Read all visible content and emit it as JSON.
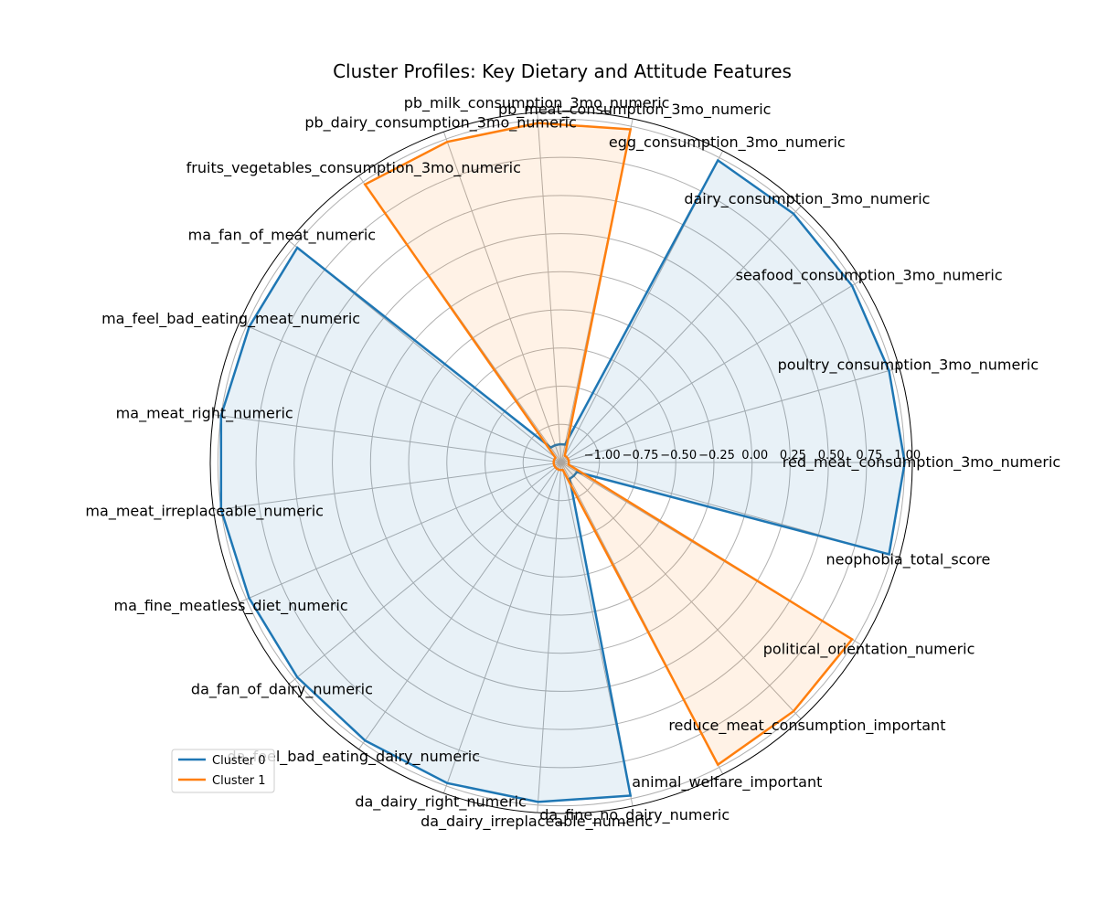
{
  "chart_data": {
    "type": "radar",
    "title": "Cluster Profiles: Key Dietary and Attitude Features",
    "categories": [
      "red_meat_consumption_3mo_numeric",
      "poultry_consumption_3mo_numeric",
      "seafood_consumption_3mo_numeric",
      "dairy_consumption_3mo_numeric",
      "egg_consumption_3mo_numeric",
      "pb_meat_consumption_3mo_numeric",
      "pb_milk_consumption_3mo_numeric",
      "pb_dairy_consumption_3mo_numeric",
      "fruits_vegetables_consumption_3mo_numeric",
      "ma_fan_of_meat_numeric",
      "ma_feel_bad_eating_meat_numeric",
      "ma_meat_right_numeric",
      "ma_meat_irreplaceable_numeric",
      "ma_fine_meatless_diet_numeric",
      "da_fan_of_dairy_numeric",
      "da_feel_bad_eating_dairy_numeric",
      "da_dairy_right_numeric",
      "da_dairy_irreplaceable_numeric",
      "da_fine_no_dairy_numeric",
      "animal_welfare_important",
      "reduce_meat_consumption_important",
      "political_orientation_numeric",
      "neophobia_total_score"
    ],
    "r_ticks": [
      "−1.00",
      "−0.75",
      "−0.50",
      "−0.25",
      "0.00",
      "0.25",
      "0.50",
      "0.75",
      "1.00"
    ],
    "r_tick_values": [
      -1.0,
      -0.75,
      -0.5,
      -0.25,
      0.0,
      0.25,
      0.5,
      0.75,
      1.0
    ],
    "rlim": [
      -1.25,
      1.05
    ],
    "grid": true,
    "legend_position": "lower-left",
    "series": [
      {
        "name": "Cluster 0",
        "color": "#1f77b4",
        "fill": "#1f77b4",
        "values": [
          1.0,
          0.98,
          0.98,
          0.98,
          0.98,
          -1.13,
          -1.13,
          -1.13,
          -1.13,
          0.98,
          0.98,
          1.0,
          1.0,
          0.98,
          0.98,
          0.98,
          0.98,
          0.98,
          0.98,
          -1.13,
          -1.13,
          -1.13,
          0.98
        ]
      },
      {
        "name": "Cluster 1",
        "color": "#ff7f0e",
        "fill": "#ff7f0e",
        "values": [
          -1.2,
          -1.2,
          -1.2,
          -1.2,
          -1.2,
          0.98,
          0.98,
          0.98,
          0.98,
          -1.2,
          -1.2,
          -1.2,
          -1.2,
          -1.2,
          -1.2,
          -1.2,
          -1.2,
          -1.2,
          -1.2,
          0.98,
          0.98,
          0.98,
          -1.2
        ]
      }
    ]
  }
}
